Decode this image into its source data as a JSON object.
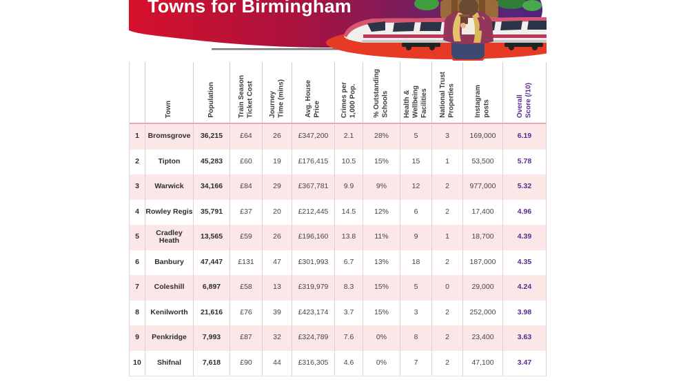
{
  "banner": {
    "title": "Towns for Birmingham"
  },
  "colors": {
    "banner_gradient_left": "#d6112b",
    "banner_gradient_right": "#4f2580",
    "row_pink": "#fbe6e8",
    "header_divider": "#f0a6b0",
    "score_purple": "#5b2a8e"
  },
  "table": {
    "columns": [
      {
        "key": "rank",
        "label": ""
      },
      {
        "key": "town",
        "label": "Town"
      },
      {
        "key": "population",
        "label": "Population"
      },
      {
        "key": "ticket",
        "label": "Train Season\nTicket Cost"
      },
      {
        "key": "journey",
        "label": "Journey\nTime (mins)"
      },
      {
        "key": "house",
        "label": "Avg. House\nPrice"
      },
      {
        "key": "crimes",
        "label": "Crimes per\n1,000 Pop."
      },
      {
        "key": "schools",
        "label": "% Outstanding\nSchools"
      },
      {
        "key": "health",
        "label": "Health &\nWellbeing\nFacilities"
      },
      {
        "key": "trust",
        "label": "National Trust\nProperties"
      },
      {
        "key": "instagram",
        "label": "Instagram\nposts"
      },
      {
        "key": "score",
        "label": "Overall\nScore (/10)"
      }
    ],
    "rows": [
      {
        "rank": "1",
        "town": "Bromsgrove",
        "population": "36,215",
        "ticket": "£64",
        "journey": "26",
        "house": "£347,200",
        "crimes": "2.1",
        "schools": "28%",
        "health": "5",
        "trust": "3",
        "instagram": "169,000",
        "score": "6.19"
      },
      {
        "rank": "2",
        "town": "Tipton",
        "population": "45,283",
        "ticket": "£60",
        "journey": "19",
        "house": "£176,415",
        "crimes": "10.5",
        "schools": "15%",
        "health": "15",
        "trust": "1",
        "instagram": "53,500",
        "score": "5.78"
      },
      {
        "rank": "3",
        "town": "Warwick",
        "population": "34,166",
        "ticket": "£84",
        "journey": "29",
        "house": "£367,781",
        "crimes": "9.9",
        "schools": "9%",
        "health": "12",
        "trust": "2",
        "instagram": "977,000",
        "score": "5.32"
      },
      {
        "rank": "4",
        "town": "Rowley Regis",
        "population": "35,791",
        "ticket": "£37",
        "journey": "20",
        "house": "£212,445",
        "crimes": "14.5",
        "schools": "12%",
        "health": "6",
        "trust": "2",
        "instagram": "17,400",
        "score": "4.96"
      },
      {
        "rank": "5",
        "town": "Cradley Heath",
        "population": "13,565",
        "ticket": "£59",
        "journey": "26",
        "house": "£196,160",
        "crimes": "13.8",
        "schools": "11%",
        "health": "9",
        "trust": "1",
        "instagram": "18,700",
        "score": "4.39"
      },
      {
        "rank": "6",
        "town": "Banbury",
        "population": "47,447",
        "ticket": "£131",
        "journey": "47",
        "house": "£301,993",
        "crimes": "6.7",
        "schools": "13%",
        "health": "18",
        "trust": "2",
        "instagram": "187,000",
        "score": "4.35"
      },
      {
        "rank": "7",
        "town": "Coleshill",
        "population": "6,897",
        "ticket": "£58",
        "journey": "13",
        "house": "£319,979",
        "crimes": "8.3",
        "schools": "15%",
        "health": "5",
        "trust": "0",
        "instagram": "29,000",
        "score": "4.24"
      },
      {
        "rank": "8",
        "town": "Kenilworth",
        "population": "21,616",
        "ticket": "£76",
        "journey": "39",
        "house": "£423,174",
        "crimes": "3.7",
        "schools": "15%",
        "health": "3",
        "trust": "2",
        "instagram": "252,000",
        "score": "3.98"
      },
      {
        "rank": "9",
        "town": "Penkridge",
        "population": "7,993",
        "ticket": "£87",
        "journey": "32",
        "house": "£324,789",
        "crimes": "7.6",
        "schools": "0%",
        "health": "8",
        "trust": "2",
        "instagram": "23,400",
        "score": "3.63"
      },
      {
        "rank": "10",
        "town": "Shifnal",
        "population": "7,618",
        "ticket": "£90",
        "journey": "44",
        "house": "£316,305",
        "crimes": "4.6",
        "schools": "0%",
        "health": "7",
        "trust": "2",
        "instagram": "47,100",
        "score": "3.47"
      }
    ]
  }
}
